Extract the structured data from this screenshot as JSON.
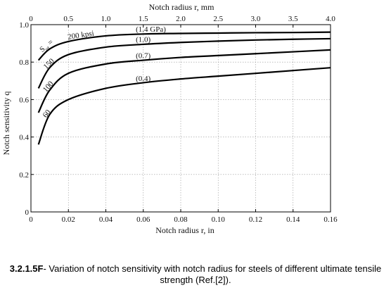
{
  "caption": {
    "number": "3.2.1.5F",
    "text": "- Variation of notch sensitivity with notch radius for steels of different ultimate tensile strength (Ref.[2])."
  },
  "colors": {
    "curve": "#000000",
    "grid": "#999999",
    "axis": "#000000"
  },
  "chart_data": {
    "type": "line",
    "title": "",
    "xlabel": "Notch radius r, in",
    "x2label": "Notch radius r, mm",
    "ylabel": "Notch sensitivity q",
    "xlim": [
      0,
      0.16
    ],
    "x2lim": [
      0,
      4.0
    ],
    "ylim": [
      0,
      1.0
    ],
    "grid": true,
    "xticks": [
      {
        "v": 0,
        "label": "0"
      },
      {
        "v": 0.02,
        "label": "0.02"
      },
      {
        "v": 0.04,
        "label": "0.04"
      },
      {
        "v": 0.06,
        "label": "0.06"
      },
      {
        "v": 0.08,
        "label": "0.08"
      },
      {
        "v": 0.1,
        "label": "0.10"
      },
      {
        "v": 0.12,
        "label": "0.12"
      },
      {
        "v": 0.14,
        "label": "0.14"
      },
      {
        "v": 0.16,
        "label": "0.16"
      }
    ],
    "x2ticks": [
      {
        "v": 0,
        "label": "0"
      },
      {
        "v": 0.5,
        "label": "0.5"
      },
      {
        "v": 1.0,
        "label": "1.0"
      },
      {
        "v": 1.5,
        "label": "1.5"
      },
      {
        "v": 2.0,
        "label": "2.0"
      },
      {
        "v": 2.5,
        "label": "2.5"
      },
      {
        "v": 3.0,
        "label": "3.0"
      },
      {
        "v": 3.5,
        "label": "3.5"
      },
      {
        "v": 4.0,
        "label": "4.0"
      }
    ],
    "yticks": [
      {
        "v": 0,
        "label": "0"
      },
      {
        "v": 0.2,
        "label": "0.2"
      },
      {
        "v": 0.4,
        "label": "0.4"
      },
      {
        "v": 0.6,
        "label": "0.6"
      },
      {
        "v": 0.8,
        "label": "0.8"
      },
      {
        "v": 1.0,
        "label": "1.0"
      }
    ],
    "series": [
      {
        "name": "Sut = 200 kpsi",
        "label": "200 kpsi",
        "si_label": "(1.4 GPa)",
        "label_x": 0.02,
        "x": [
          0.004,
          0.01,
          0.02,
          0.04,
          0.06,
          0.08,
          0.1,
          0.12,
          0.14,
          0.16
        ],
        "y": [
          0.81,
          0.87,
          0.91,
          0.94,
          0.95,
          0.953,
          0.955,
          0.957,
          0.958,
          0.96
        ]
      },
      {
        "name": "150",
        "label": "150",
        "si_label": "(1.0)",
        "label_x": 0.009,
        "x": [
          0.004,
          0.01,
          0.02,
          0.04,
          0.06,
          0.08,
          0.1,
          0.12,
          0.14,
          0.16
        ],
        "y": [
          0.66,
          0.77,
          0.84,
          0.88,
          0.895,
          0.905,
          0.912,
          0.918,
          0.922,
          0.925
        ]
      },
      {
        "name": "100",
        "label": "100",
        "si_label": "(0.7)",
        "label_x": 0.009,
        "x": [
          0.004,
          0.01,
          0.02,
          0.04,
          0.06,
          0.08,
          0.1,
          0.12,
          0.14,
          0.16
        ],
        "y": [
          0.53,
          0.65,
          0.74,
          0.79,
          0.81,
          0.825,
          0.835,
          0.845,
          0.855,
          0.865
        ]
      },
      {
        "name": "60",
        "label": "60",
        "si_label": "(0.4)",
        "label_x": 0.009,
        "x": [
          0.004,
          0.01,
          0.02,
          0.04,
          0.06,
          0.08,
          0.1,
          0.12,
          0.14,
          0.16
        ],
        "y": [
          0.36,
          0.52,
          0.6,
          0.66,
          0.69,
          0.71,
          0.725,
          0.74,
          0.755,
          0.77
        ]
      }
    ]
  }
}
